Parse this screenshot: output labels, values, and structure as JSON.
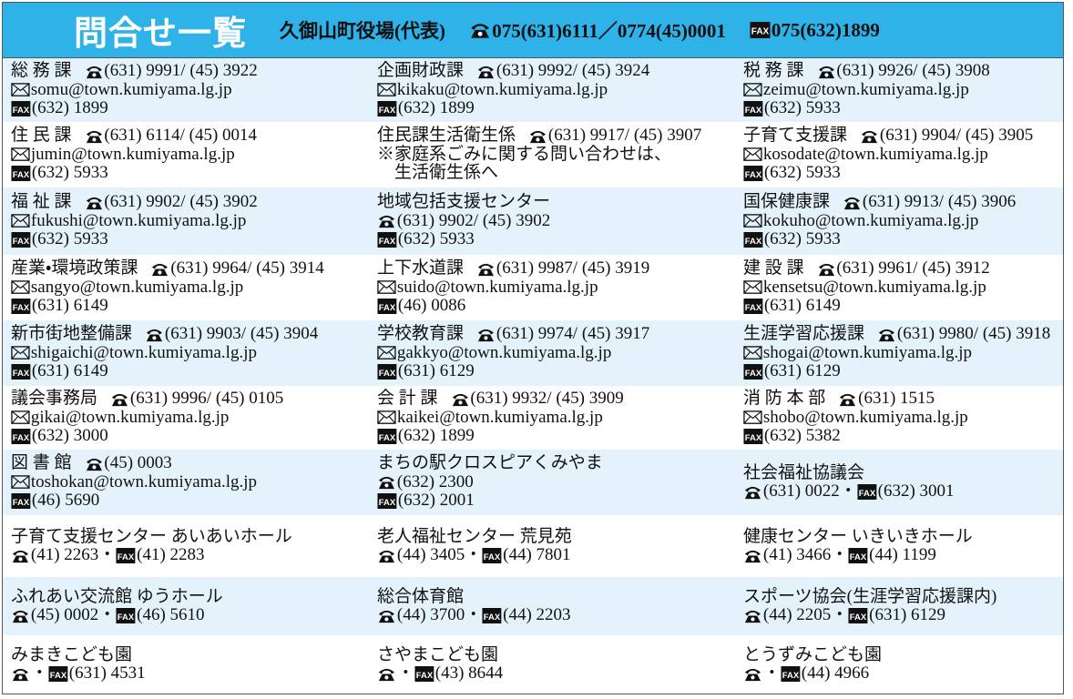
{
  "header": {
    "title": "問合せ一覧",
    "office": "久御山町役場(代表)",
    "tel": "075(631)6111／0774(45)0001",
    "fax": "075(632)1899"
  },
  "fax_label": "FAX",
  "rows": [
    [
      [
        [
          {
            "text": "総 務 課"
          },
          {
            "icon": "tel",
            "text": "(631) 9991/ (45) 3922"
          }
        ],
        [
          {
            "icon": "mail",
            "text": "somu@town.kumiyama.lg.jp"
          }
        ],
        [
          {
            "icon": "fax",
            "text": "(632) 1899"
          }
        ]
      ],
      [
        [
          {
            "text": "企画財政課"
          },
          {
            "icon": "tel",
            "text": "(631) 9992/ (45) 3924"
          }
        ],
        [
          {
            "icon": "mail",
            "text": "kikaku@town.kumiyama.lg.jp"
          }
        ],
        [
          {
            "icon": "fax",
            "text": "(632) 1899"
          }
        ]
      ],
      [
        [
          {
            "text": "税 務 課"
          },
          {
            "icon": "tel",
            "text": "(631) 9926/ (45) 3908"
          }
        ],
        [
          {
            "icon": "mail",
            "text": "zeimu@town.kumiyama.lg.jp"
          }
        ],
        [
          {
            "icon": "fax",
            "text": "(632) 5933"
          }
        ]
      ]
    ],
    [
      [
        [
          {
            "text": "住 民 課"
          },
          {
            "icon": "tel",
            "text": "(631) 6114/ (45) 0014"
          }
        ],
        [
          {
            "icon": "mail",
            "text": "jumin@town.kumiyama.lg.jp"
          }
        ],
        [
          {
            "icon": "fax",
            "text": "(632) 5933"
          }
        ]
      ],
      [
        [
          {
            "text": "住民課生活衛生係"
          },
          {
            "icon": "tel",
            "text": "(631) 9917/ (45) 3907"
          }
        ],
        [
          {
            "text": "※家庭系ごみに関する問い合わせは、"
          }
        ],
        [
          {
            "text": "　生活衛生係へ"
          }
        ]
      ],
      [
        [
          {
            "text": "子育て支援課"
          },
          {
            "icon": "tel",
            "text": "(631) 9904/ (45) 3905"
          }
        ],
        [
          {
            "icon": "mail",
            "text": "kosodate@town.kumiyama.lg.jp"
          }
        ],
        [
          {
            "icon": "fax",
            "text": "(632) 5933"
          }
        ]
      ]
    ],
    [
      [
        [
          {
            "text": "福 祉 課"
          },
          {
            "icon": "tel",
            "text": "(631) 9902/ (45) 3902"
          }
        ],
        [
          {
            "icon": "mail",
            "text": "fukushi@town.kumiyama.lg.jp"
          }
        ],
        [
          {
            "icon": "fax",
            "text": "(632) 5933"
          }
        ]
      ],
      [
        [
          {
            "text": "地域包括支援センター"
          }
        ],
        [
          {
            "icon": "tel",
            "text": "(631) 9902/ (45) 3902"
          }
        ],
        [
          {
            "icon": "fax",
            "text": "(632) 5933"
          }
        ]
      ],
      [
        [
          {
            "text": "国保健康課"
          },
          {
            "icon": "tel",
            "text": "(631) 9913/ (45) 3906"
          }
        ],
        [
          {
            "icon": "mail",
            "text": "kokuho@town.kumiyama.lg.jp"
          }
        ],
        [
          {
            "icon": "fax",
            "text": "(632) 5933"
          }
        ]
      ]
    ],
    [
      [
        [
          {
            "text": "産業・環境政策課"
          },
          {
            "icon": "tel",
            "text": "(631) 9964/ (45) 3914"
          }
        ],
        [
          {
            "icon": "mail",
            "text": "sangyo@town.kumiyama.lg.jp"
          }
        ],
        [
          {
            "icon": "fax",
            "text": "(631) 6149"
          }
        ]
      ],
      [
        [
          {
            "text": "上下水道課"
          },
          {
            "icon": "tel",
            "text": "(631) 9987/ (45) 3919"
          }
        ],
        [
          {
            "icon": "mail",
            "text": "suido@town.kumiyama.lg.jp"
          }
        ],
        [
          {
            "icon": "fax",
            "text": "(46) 0086"
          }
        ]
      ],
      [
        [
          {
            "text": "建 設 課"
          },
          {
            "icon": "tel",
            "text": "(631) 9961/ (45) 3912"
          }
        ],
        [
          {
            "icon": "mail",
            "text": "kensetsu@town.kumiyama.lg.jp"
          }
        ],
        [
          {
            "icon": "fax",
            "text": "(631) 6149"
          }
        ]
      ]
    ],
    [
      [
        [
          {
            "text": "新市街地整備課"
          },
          {
            "icon": "tel",
            "text": "(631) 9903/ (45) 3904"
          }
        ],
        [
          {
            "icon": "mail",
            "text": "shigaichi@town.kumiyama.lg.jp"
          }
        ],
        [
          {
            "icon": "fax",
            "text": "(631) 6149"
          }
        ]
      ],
      [
        [
          {
            "text": "学校教育課"
          },
          {
            "icon": "tel",
            "text": "(631) 9974/ (45) 3917"
          }
        ],
        [
          {
            "icon": "mail",
            "text": "gakkyo@town.kumiyama.lg.jp"
          }
        ],
        [
          {
            "icon": "fax",
            "text": "(631) 6129"
          }
        ]
      ],
      [
        [
          {
            "text": "生涯学習応援課"
          },
          {
            "icon": "tel",
            "text": "(631) 9980/ (45) 3918"
          }
        ],
        [
          {
            "icon": "mail",
            "text": "shogai@town.kumiyama.lg.jp"
          }
        ],
        [
          {
            "icon": "fax",
            "text": "(631) 6129"
          }
        ]
      ]
    ],
    [
      [
        [
          {
            "text": "議会事務局"
          },
          {
            "icon": "tel",
            "text": "(631) 9996/ (45) 0105"
          }
        ],
        [
          {
            "icon": "mail",
            "text": "gikai@town.kumiyama.lg.jp"
          }
        ],
        [
          {
            "icon": "fax",
            "text": "(632) 3000"
          }
        ]
      ],
      [
        [
          {
            "text": "会 計 課"
          },
          {
            "icon": "tel",
            "text": "(631) 9932/ (45) 3909"
          }
        ],
        [
          {
            "icon": "mail",
            "text": "kaikei@town.kumiyama.lg.jp"
          }
        ],
        [
          {
            "icon": "fax",
            "text": "(632) 1899"
          }
        ]
      ],
      [
        [
          {
            "text": "消 防 本 部"
          },
          {
            "icon": "tel",
            "text": "(631) 1515"
          }
        ],
        [
          {
            "icon": "mail",
            "text": "shobo@town.kumiyama.lg.jp"
          }
        ],
        [
          {
            "icon": "fax",
            "text": "(632) 5382"
          }
        ]
      ]
    ],
    [
      [
        [
          {
            "text": "図 書 館"
          },
          {
            "icon": "tel",
            "text": "(45) 0003"
          }
        ],
        [
          {
            "icon": "mail",
            "text": "toshokan@town.kumiyama.lg.jp"
          }
        ],
        [
          {
            "icon": "fax",
            "text": "(46) 5690"
          }
        ]
      ],
      [
        [
          {
            "text": "まちの駅クロスピアくみやま"
          }
        ],
        [
          {
            "icon": "tel",
            "text": "(632) 2300"
          }
        ],
        [
          {
            "icon": "fax",
            "text": "(632) 2001"
          }
        ]
      ],
      [
        [
          {
            "text": "社会福祉協議会"
          }
        ],
        [
          {
            "icon": "tel",
            "text": "(631) 0022"
          },
          {
            "text": "・"
          },
          {
            "icon": "fax",
            "text": "(632) 3001"
          }
        ]
      ]
    ],
    [
      [
        [
          {
            "text": "子育て支援センター あいあいホール"
          }
        ],
        [
          {
            "icon": "tel",
            "text": "(41) 2263"
          },
          {
            "text": "・"
          },
          {
            "icon": "fax",
            "text": "(41) 2283"
          }
        ]
      ],
      [
        [
          {
            "text": "老人福祉センター 荒見苑"
          }
        ],
        [
          {
            "icon": "tel",
            "text": "(44) 3405"
          },
          {
            "text": "・"
          },
          {
            "icon": "fax",
            "text": "(44) 7801"
          }
        ]
      ],
      [
        [
          {
            "text": "健康センター いきいきホール"
          }
        ],
        [
          {
            "icon": "tel",
            "text": "(41) 3466"
          },
          {
            "text": "・"
          },
          {
            "icon": "fax",
            "text": "(44) 1199"
          }
        ]
      ]
    ],
    [
      [
        [
          {
            "text": "ふれあい交流館 ゆうホール"
          }
        ],
        [
          {
            "icon": "tel",
            "text": "(45) 0002"
          },
          {
            "text": "・"
          },
          {
            "icon": "fax",
            "text": "(46) 5610"
          }
        ]
      ],
      [
        [
          {
            "text": "総合体育館"
          }
        ],
        [
          {
            "icon": "tel",
            "text": "(44) 3700"
          },
          {
            "text": "・"
          },
          {
            "icon": "fax",
            "text": "(44) 2203"
          }
        ]
      ],
      [
        [
          {
            "text": "スポーツ協会(生涯学習応援課内)"
          }
        ],
        [
          {
            "icon": "tel",
            "text": "(44) 2205"
          },
          {
            "text": "・"
          },
          {
            "icon": "fax",
            "text": "(631) 6129"
          }
        ]
      ]
    ],
    [
      [
        [
          {
            "text": "みまきこども園"
          }
        ],
        [
          {
            "icon": "tel"
          },
          {
            "text": "・"
          },
          {
            "icon": "fax",
            "text": "(631) 4531"
          }
        ]
      ],
      [
        [
          {
            "text": "さやまこども園"
          }
        ],
        [
          {
            "icon": "tel"
          },
          {
            "text": "・"
          },
          {
            "icon": "fax",
            "text": "(43) 8644"
          }
        ]
      ],
      [
        [
          {
            "text": "とうずみこども園"
          }
        ],
        [
          {
            "icon": "tel"
          },
          {
            "text": "・"
          },
          {
            "icon": "fax",
            "text": "(44) 4966"
          }
        ]
      ]
    ]
  ]
}
